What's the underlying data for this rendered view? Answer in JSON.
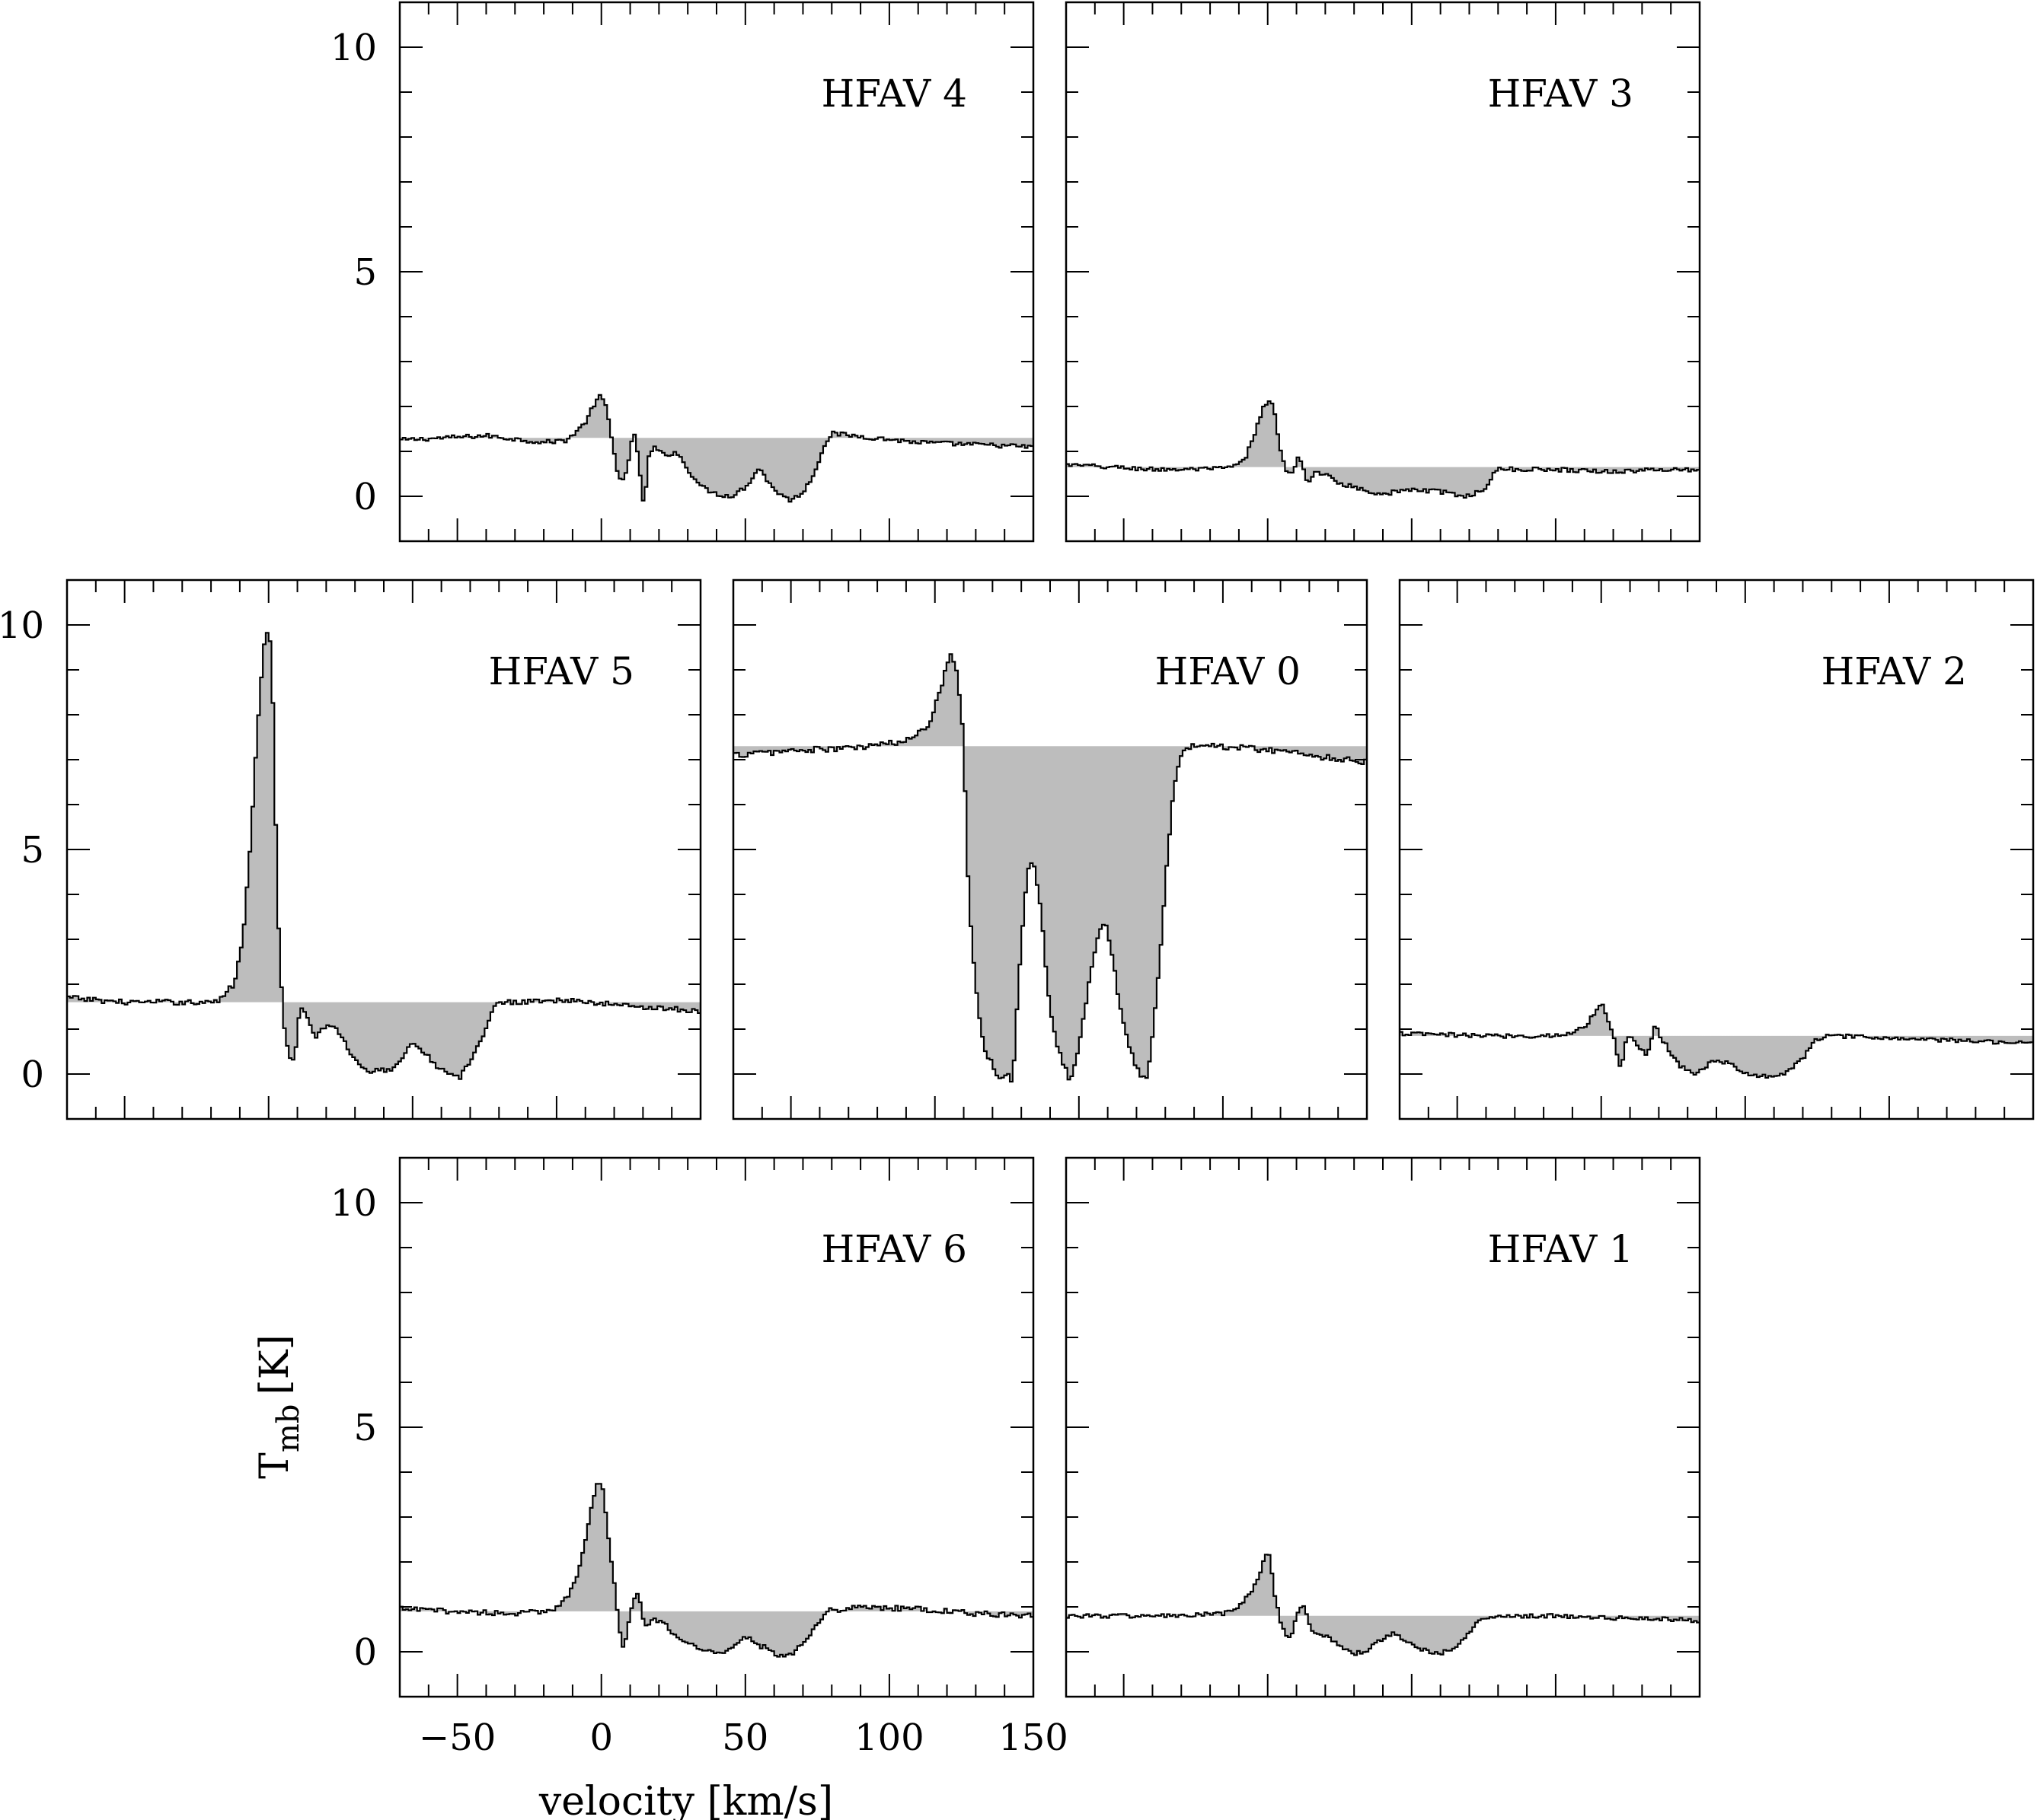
{
  "chart_data": {
    "type": "line",
    "style": "step-histogram with gray filled deviation from baseline",
    "xlabel": "velocity [km/s]",
    "ylabel_main": "T",
    "ylabel_sub": "mb",
    "ylabel_unit": "[K]",
    "xlim": [
      -70,
      150
    ],
    "ylim": [
      -1,
      11
    ],
    "x_ticks": [
      -50,
      0,
      50,
      100,
      150
    ],
    "x_tick_labels": [
      "−50",
      "0",
      "50",
      "100",
      "150"
    ],
    "y_ticks": [
      0,
      5,
      10
    ],
    "y_tick_labels": [
      "0",
      "5",
      "10"
    ],
    "grid": false,
    "fill_color": "#bdbdbd",
    "panels": [
      {
        "label": "HFAV 4",
        "baseline": 1.3,
        "keys": [
          [
            -70,
            1.25
          ],
          [
            -40,
            1.35
          ],
          [
            -20,
            1.2
          ],
          [
            -12,
            1.25
          ],
          [
            -6,
            1.6
          ],
          [
            -2,
            2.1
          ],
          [
            0,
            2.25
          ],
          [
            2,
            1.9
          ],
          [
            4,
            1.1
          ],
          [
            6,
            0.45
          ],
          [
            8,
            0.35
          ],
          [
            10,
            0.9
          ],
          [
            11,
            1.45
          ],
          [
            12,
            1.3
          ],
          [
            14,
            0.2
          ],
          [
            15,
            -0.45
          ],
          [
            16,
            0.8
          ],
          [
            18,
            1.1
          ],
          [
            22,
            0.9
          ],
          [
            26,
            1.0
          ],
          [
            30,
            0.6
          ],
          [
            35,
            0.2
          ],
          [
            40,
            0.05
          ],
          [
            45,
            0.0
          ],
          [
            50,
            0.2
          ],
          [
            55,
            0.65
          ],
          [
            58,
            0.3
          ],
          [
            62,
            0.05
          ],
          [
            66,
            -0.1
          ],
          [
            70,
            0.1
          ],
          [
            74,
            0.5
          ],
          [
            77,
            1.1
          ],
          [
            80,
            1.4
          ],
          [
            95,
            1.3
          ],
          [
            110,
            1.2
          ],
          [
            130,
            1.15
          ],
          [
            150,
            1.1
          ]
        ],
        "noise": 0.05
      },
      {
        "label": "HFAV 3",
        "baseline": 0.65,
        "keys": [
          [
            -70,
            0.7
          ],
          [
            -40,
            0.6
          ],
          [
            -20,
            0.6
          ],
          [
            -12,
            0.65
          ],
          [
            -8,
            0.8
          ],
          [
            -5,
            1.3
          ],
          [
            -2,
            1.9
          ],
          [
            0,
            2.15
          ],
          [
            2,
            2.0
          ],
          [
            4,
            1.2
          ],
          [
            6,
            0.6
          ],
          [
            8,
            0.45
          ],
          [
            10,
            0.7
          ],
          [
            11,
            0.95
          ],
          [
            12,
            0.7
          ],
          [
            14,
            0.3
          ],
          [
            16,
            0.5
          ],
          [
            20,
            0.5
          ],
          [
            25,
            0.3
          ],
          [
            30,
            0.2
          ],
          [
            40,
            0.05
          ],
          [
            50,
            0.15
          ],
          [
            60,
            0.1
          ],
          [
            70,
            0.0
          ],
          [
            75,
            0.15
          ],
          [
            78,
            0.45
          ],
          [
            80,
            0.6
          ],
          [
            100,
            0.6
          ],
          [
            120,
            0.55
          ],
          [
            140,
            0.6
          ],
          [
            150,
            0.6
          ]
        ],
        "noise": 0.05
      },
      {
        "label": "HFAV 5",
        "baseline": 1.6,
        "keys": [
          [
            -70,
            1.7
          ],
          [
            -50,
            1.6
          ],
          [
            -30,
            1.6
          ],
          [
            -18,
            1.6
          ],
          [
            -12,
            2.0
          ],
          [
            -9,
            3.0
          ],
          [
            -7,
            4.5
          ],
          [
            -5,
            6.5
          ],
          [
            -3,
            8.5
          ],
          [
            -1,
            10.0
          ],
          [
            1,
            9.5
          ],
          [
            2,
            7.0
          ],
          [
            3,
            4.0
          ],
          [
            5,
            1.2
          ],
          [
            7,
            0.4
          ],
          [
            9,
            0.3
          ],
          [
            11,
            1.5
          ],
          [
            13,
            1.3
          ],
          [
            16,
            0.8
          ],
          [
            20,
            1.1
          ],
          [
            24,
            1.0
          ],
          [
            28,
            0.5
          ],
          [
            32,
            0.2
          ],
          [
            36,
            0.05
          ],
          [
            42,
            0.1
          ],
          [
            46,
            0.3
          ],
          [
            50,
            0.75
          ],
          [
            54,
            0.5
          ],
          [
            58,
            0.2
          ],
          [
            62,
            0.0
          ],
          [
            66,
            -0.1
          ],
          [
            70,
            0.25
          ],
          [
            74,
            0.8
          ],
          [
            78,
            1.5
          ],
          [
            82,
            1.6
          ],
          [
            100,
            1.65
          ],
          [
            120,
            1.55
          ],
          [
            140,
            1.45
          ],
          [
            150,
            1.4
          ]
        ],
        "noise": 0.06
      },
      {
        "label": "HFAV 0",
        "baseline": 7.3,
        "keys": [
          [
            -70,
            7.1
          ],
          [
            -50,
            7.2
          ],
          [
            -30,
            7.25
          ],
          [
            -10,
            7.4
          ],
          [
            -2,
            7.8
          ],
          [
            2,
            8.6
          ],
          [
            5,
            9.3
          ],
          [
            6,
            9.4
          ],
          [
            8,
            8.8
          ],
          [
            10,
            7.5
          ],
          [
            11,
            5.0
          ],
          [
            13,
            2.8
          ],
          [
            15,
            1.5
          ],
          [
            17,
            0.6
          ],
          [
            20,
            0.2
          ],
          [
            23,
            -0.2
          ],
          [
            25,
            0.1
          ],
          [
            27,
            -0.3
          ],
          [
            29,
            2.0
          ],
          [
            31,
            3.8
          ],
          [
            33,
            4.8
          ],
          [
            35,
            4.5
          ],
          [
            37,
            3.5
          ],
          [
            39,
            2.0
          ],
          [
            41,
            1.0
          ],
          [
            44,
            0.35
          ],
          [
            47,
            -0.15
          ],
          [
            49,
            0.3
          ],
          [
            51,
            1.0
          ],
          [
            54,
            2.2
          ],
          [
            57,
            3.2
          ],
          [
            59,
            3.4
          ],
          [
            62,
            2.5
          ],
          [
            65,
            1.2
          ],
          [
            68,
            0.5
          ],
          [
            71,
            0.0
          ],
          [
            74,
            -0.1
          ],
          [
            76,
            1.2
          ],
          [
            78,
            2.5
          ],
          [
            80,
            4.2
          ],
          [
            82,
            5.8
          ],
          [
            84,
            6.8
          ],
          [
            86,
            7.2
          ],
          [
            90,
            7.3
          ],
          [
            100,
            7.3
          ],
          [
            110,
            7.25
          ],
          [
            120,
            7.2
          ],
          [
            130,
            7.1
          ],
          [
            150,
            6.95
          ]
        ],
        "noise": 0.07
      },
      {
        "label": "HFAV 2",
        "baseline": 0.85,
        "keys": [
          [
            -70,
            0.9
          ],
          [
            -40,
            0.85
          ],
          [
            -20,
            0.85
          ],
          [
            -10,
            0.9
          ],
          [
            -5,
            1.1
          ],
          [
            -2,
            1.4
          ],
          [
            0,
            1.6
          ],
          [
            2,
            1.3
          ],
          [
            4,
            0.9
          ],
          [
            6,
            0.3
          ],
          [
            7,
            0.1
          ],
          [
            8,
            0.6
          ],
          [
            9,
            0.9
          ],
          [
            11,
            0.75
          ],
          [
            14,
            0.55
          ],
          [
            16,
            0.35
          ],
          [
            18,
            1.0
          ],
          [
            19,
            1.1
          ],
          [
            20,
            0.9
          ],
          [
            22,
            0.7
          ],
          [
            25,
            0.4
          ],
          [
            28,
            0.15
          ],
          [
            32,
            0.0
          ],
          [
            36,
            0.15
          ],
          [
            40,
            0.35
          ],
          [
            45,
            0.2
          ],
          [
            50,
            0.0
          ],
          [
            60,
            -0.05
          ],
          [
            65,
            0.05
          ],
          [
            70,
            0.35
          ],
          [
            74,
            0.75
          ],
          [
            78,
            0.85
          ],
          [
            100,
            0.8
          ],
          [
            120,
            0.75
          ],
          [
            150,
            0.7
          ]
        ],
        "noise": 0.05
      },
      {
        "label": "HFAV 6",
        "baseline": 0.9,
        "keys": [
          [
            -70,
            0.95
          ],
          [
            -50,
            0.9
          ],
          [
            -30,
            0.85
          ],
          [
            -18,
            0.9
          ],
          [
            -12,
            1.2
          ],
          [
            -8,
            1.8
          ],
          [
            -5,
            2.6
          ],
          [
            -3,
            3.4
          ],
          [
            -1,
            3.85
          ],
          [
            1,
            3.5
          ],
          [
            2,
            2.8
          ],
          [
            4,
            1.8
          ],
          [
            6,
            0.7
          ],
          [
            7,
            0.15
          ],
          [
            8,
            0.05
          ],
          [
            10,
            0.8
          ],
          [
            12,
            1.35
          ],
          [
            13,
            1.2
          ],
          [
            15,
            0.6
          ],
          [
            18,
            0.7
          ],
          [
            22,
            0.6
          ],
          [
            26,
            0.35
          ],
          [
            30,
            0.2
          ],
          [
            35,
            0.05
          ],
          [
            40,
            -0.05
          ],
          [
            45,
            0.1
          ],
          [
            50,
            0.35
          ],
          [
            55,
            0.15
          ],
          [
            60,
            -0.05
          ],
          [
            65,
            -0.1
          ],
          [
            70,
            0.2
          ],
          [
            74,
            0.55
          ],
          [
            78,
            0.9
          ],
          [
            90,
            1.0
          ],
          [
            110,
            0.95
          ],
          [
            130,
            0.85
          ],
          [
            150,
            0.8
          ]
        ],
        "noise": 0.06
      },
      {
        "label": "HFAV 1",
        "baseline": 0.8,
        "keys": [
          [
            -70,
            0.8
          ],
          [
            -50,
            0.8
          ],
          [
            -30,
            0.8
          ],
          [
            -15,
            0.85
          ],
          [
            -10,
            1.0
          ],
          [
            -6,
            1.3
          ],
          [
            -3,
            1.7
          ],
          [
            -1,
            2.1
          ],
          [
            0,
            2.25
          ],
          [
            1,
            2.0
          ],
          [
            2,
            1.4
          ],
          [
            4,
            0.8
          ],
          [
            6,
            0.35
          ],
          [
            8,
            0.25
          ],
          [
            10,
            0.8
          ],
          [
            12,
            1.0
          ],
          [
            13,
            0.95
          ],
          [
            15,
            0.45
          ],
          [
            18,
            0.4
          ],
          [
            22,
            0.3
          ],
          [
            26,
            0.1
          ],
          [
            30,
            -0.05
          ],
          [
            35,
            0.05
          ],
          [
            40,
            0.3
          ],
          [
            44,
            0.45
          ],
          [
            48,
            0.25
          ],
          [
            52,
            0.1
          ],
          [
            58,
            -0.05
          ],
          [
            65,
            0.05
          ],
          [
            70,
            0.4
          ],
          [
            74,
            0.75
          ],
          [
            78,
            0.8
          ],
          [
            100,
            0.8
          ],
          [
            120,
            0.75
          ],
          [
            150,
            0.7
          ]
        ],
        "noise": 0.05
      }
    ]
  }
}
